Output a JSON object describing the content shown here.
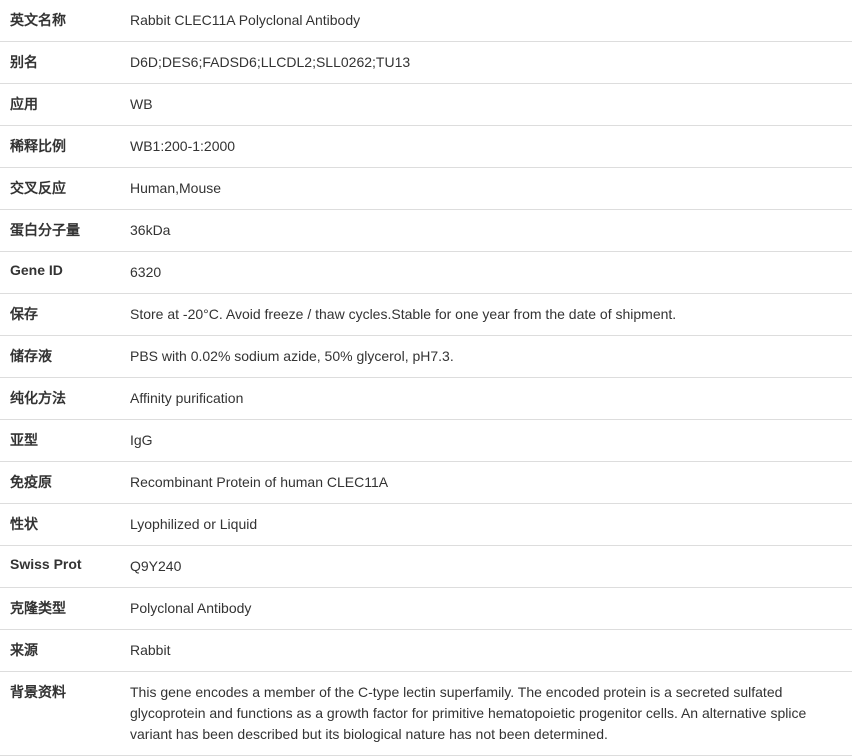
{
  "table": {
    "border_color": "#dddddd",
    "text_color": "#333333",
    "background_color": "#ffffff",
    "label_width": 130,
    "font_size": 14,
    "label_font_weight": "bold",
    "row_padding": 10
  },
  "rows": [
    {
      "label": "英文名称",
      "value": "Rabbit CLEC11A Polyclonal Antibody"
    },
    {
      "label": "别名",
      "value": "D6D;DES6;FADSD6;LLCDL2;SLL0262;TU13"
    },
    {
      "label": "应用",
      "value": "WB"
    },
    {
      "label": "稀释比例",
      "value": "WB1:200-1:2000"
    },
    {
      "label": "交叉反应",
      "value": "Human,Mouse"
    },
    {
      "label": "蛋白分子量",
      "value": "36kDa"
    },
    {
      "label": "Gene ID",
      "value": "6320"
    },
    {
      "label": "保存",
      "value": "Store at -20°C. Avoid freeze / thaw cycles.Stable for one year from the date of shipment."
    },
    {
      "label": "储存液",
      "value": "PBS with 0.02% sodium azide, 50% glycerol, pH7.3."
    },
    {
      "label": "纯化方法",
      "value": "Affinity purification"
    },
    {
      "label": "亚型",
      "value": "IgG"
    },
    {
      "label": "免疫原",
      "value": "Recombinant Protein of human CLEC11A"
    },
    {
      "label": "性状",
      "value": "Lyophilized or Liquid"
    },
    {
      "label": "Swiss Prot",
      "value": "Q9Y240"
    },
    {
      "label": "克隆类型",
      "value": "Polyclonal Antibody"
    },
    {
      "label": "来源",
      "value": "Rabbit"
    },
    {
      "label": "背景资料",
      "value": "This gene encodes a member of the C-type lectin superfamily. The encoded protein is a secreted sulfated glycoprotein and functions as a growth factor for primitive hematopoietic progenitor cells. An alternative splice variant has been described but its biological nature has not been determined."
    }
  ]
}
